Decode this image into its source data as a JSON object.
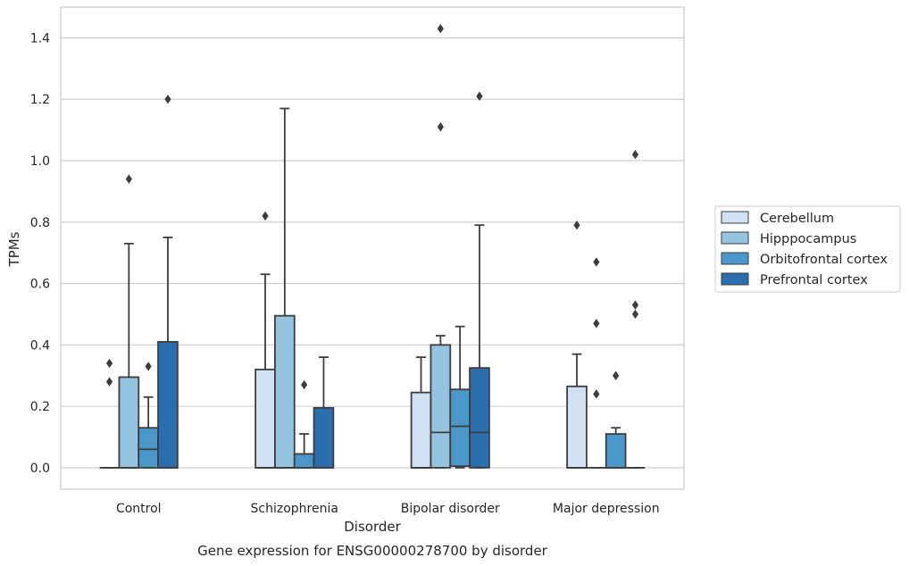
{
  "chart_data": {
    "type": "box",
    "caption": "Gene expression for ENSG00000278700 by disorder",
    "xlabel": "Disorder",
    "ylabel": "TPMs",
    "ylim": [
      -0.07,
      1.5
    ],
    "yticks": [
      0.0,
      0.2,
      0.4,
      0.6,
      0.8,
      1.0,
      1.2,
      1.4
    ],
    "ytick_labels": [
      "0.0",
      "0.2",
      "0.4",
      "0.6",
      "0.8",
      "1.0",
      "1.2",
      "1.4"
    ],
    "grid": "horizontal",
    "legend_position": "right",
    "categories": [
      "Control",
      "Schizophrenia",
      "Bipolar disorder",
      "Major depression"
    ],
    "series": [
      {
        "name": "Cerebellum",
        "color": "#d0e1f2",
        "boxes": [
          {
            "q1": 0.0,
            "median": 0.0,
            "q3": 0.0,
            "whisker_low": 0.0,
            "whisker_high": 0.0,
            "outliers": [
              0.28,
              0.34
            ]
          },
          {
            "q1": 0.0,
            "median": 0.0,
            "q3": 0.32,
            "whisker_low": 0.0,
            "whisker_high": 0.63,
            "outliers": [
              0.82
            ]
          },
          {
            "q1": 0.0,
            "median": 0.0,
            "q3": 0.245,
            "whisker_low": 0.0,
            "whisker_high": 0.36,
            "outliers": []
          },
          {
            "q1": 0.0,
            "median": 0.0,
            "q3": 0.265,
            "whisker_low": 0.0,
            "whisker_high": 0.37,
            "outliers": [
              0.79
            ]
          }
        ]
      },
      {
        "name": "Hipppocampus",
        "color": "#94c4df",
        "boxes": [
          {
            "q1": 0.0,
            "median": 0.0,
            "q3": 0.295,
            "whisker_low": 0.0,
            "whisker_high": 0.73,
            "outliers": [
              0.94
            ]
          },
          {
            "q1": 0.0,
            "median": 0.0,
            "q3": 0.495,
            "whisker_low": 0.0,
            "whisker_high": 1.17,
            "outliers": []
          },
          {
            "q1": 0.0,
            "median": 0.115,
            "q3": 0.4,
            "whisker_low": 0.0,
            "whisker_high": 0.43,
            "outliers": [
              1.11,
              1.43
            ]
          },
          {
            "q1": 0.0,
            "median": 0.0,
            "q3": 0.0,
            "whisker_low": 0.0,
            "whisker_high": 0.0,
            "outliers": [
              0.24,
              0.47,
              0.67
            ]
          }
        ]
      },
      {
        "name": "Orbitofrontal cortex",
        "color": "#4a98c9",
        "boxes": [
          {
            "q1": 0.0,
            "median": 0.06,
            "q3": 0.13,
            "whisker_low": 0.0,
            "whisker_high": 0.23,
            "outliers": [
              0.33
            ]
          },
          {
            "q1": 0.0,
            "median": 0.0,
            "q3": 0.045,
            "whisker_low": 0.0,
            "whisker_high": 0.11,
            "outliers": [
              0.27
            ]
          },
          {
            "q1": 0.005,
            "median": 0.135,
            "q3": 0.255,
            "whisker_low": 0.0,
            "whisker_high": 0.46,
            "outliers": []
          },
          {
            "q1": 0.0,
            "median": 0.0,
            "q3": 0.11,
            "whisker_low": 0.0,
            "whisker_high": 0.13,
            "outliers": [
              0.3
            ]
          }
        ]
      },
      {
        "name": "Prefrontal cortex",
        "color": "#2b6eae",
        "boxes": [
          {
            "q1": 0.0,
            "median": 0.0,
            "q3": 0.41,
            "whisker_low": 0.0,
            "whisker_high": 0.75,
            "outliers": [
              1.2
            ]
          },
          {
            "q1": 0.0,
            "median": 0.0,
            "q3": 0.195,
            "whisker_low": 0.0,
            "whisker_high": 0.36,
            "outliers": []
          },
          {
            "q1": 0.0,
            "median": 0.115,
            "q3": 0.325,
            "whisker_low": 0.0,
            "whisker_high": 0.79,
            "outliers": [
              1.21
            ]
          },
          {
            "q1": 0.0,
            "median": 0.0,
            "q3": 0.0,
            "whisker_low": 0.0,
            "whisker_high": 0.0,
            "outliers": [
              0.5,
              0.53,
              1.02
            ]
          }
        ]
      }
    ]
  }
}
